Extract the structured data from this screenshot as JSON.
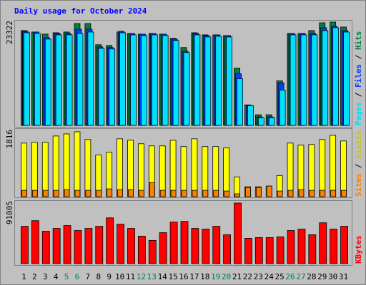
{
  "chart_data": {
    "type": "bar",
    "title": "Daily usage for October 2024",
    "categories": [
      "1",
      "2",
      "3",
      "4",
      "5",
      "6",
      "7",
      "8",
      "9",
      "10",
      "11",
      "12",
      "13",
      "14",
      "15",
      "16",
      "17",
      "18",
      "19",
      "20",
      "21",
      "22",
      "23",
      "24",
      "25",
      "26",
      "27",
      "28",
      "29",
      "30",
      "31"
    ],
    "category_colors": [
      "#000000",
      "#000000",
      "#000000",
      "#000000",
      "#008040",
      "#008040",
      "#000000",
      "#000000",
      "#000000",
      "#000000",
      "#000000",
      "#008040",
      "#008040",
      "#000000",
      "#000000",
      "#000000",
      "#000000",
      "#000000",
      "#008040",
      "#008040",
      "#000000",
      "#000000",
      "#000000",
      "#000000",
      "#000000",
      "#008040",
      "#008040",
      "#000000",
      "#000000",
      "#000000",
      "#000000"
    ],
    "legend_separator": " / ",
    "panels": [
      {
        "ylim": [
          0,
          23322
        ],
        "yticks": [
          23322
        ],
        "series": [
          {
            "name": "Hits",
            "color": "#008040",
            "values": [
              21400,
              21080,
              20600,
              20920,
              21080,
              23000,
              23000,
              18210,
              18050,
              21080,
              20760,
              20600,
              20760,
              20600,
              19640,
              17570,
              20920,
              20440,
              20440,
              20280,
              12940,
              4630,
              2400,
              2400,
              10060,
              20760,
              20760,
              21400,
              23160,
              23322,
              22200
            ]
          },
          {
            "name": "Files",
            "color": "#0040ff",
            "values": [
              21240,
              21080,
              19800,
              20760,
              20760,
              21720,
              21720,
              17730,
              17570,
              21240,
              20760,
              20600,
              20760,
              20600,
              19480,
              16770,
              20760,
              20280,
              20440,
              20280,
              11660,
              4550,
              1920,
              1920,
              9580,
              20760,
              20760,
              20760,
              22040,
              22360,
              21400
            ]
          },
          {
            "name": "Pages",
            "color": "#00e0ff",
            "values": [
              20920,
              20760,
              19480,
              20440,
              20440,
              20760,
              21080,
              17410,
              17250,
              20920,
              20440,
              20280,
              20440,
              20280,
              19160,
              16450,
              20440,
              19960,
              20120,
              19960,
              10540,
              4470,
              1760,
              1760,
              7990,
              20440,
              20440,
              20440,
              21400,
              22040,
              21080
            ]
          }
        ]
      },
      {
        "ylim": [
          0,
          1816
        ],
        "yticks": [
          1816
        ],
        "series": [
          {
            "name": "Visits",
            "color": "#ffff00",
            "values": [
              1484,
              1504,
              1504,
              1680,
              1738,
              1797,
              1582,
              1152,
              1230,
              1602,
              1562,
              1465,
              1406,
              1406,
              1562,
              1387,
              1602,
              1387,
              1387,
              1348,
              547,
              273,
              273,
              293,
              586,
              1484,
              1426,
              1445,
              1582,
              1699,
              1543
            ]
          },
          {
            "name": "Sites",
            "color": "#ff8000",
            "values": [
              176,
              176,
              176,
              176,
              195,
              176,
              176,
              176,
              215,
              195,
              195,
              176,
              390,
              176,
              176,
              176,
              176,
              176,
              176,
              156,
              78,
              254,
              254,
              293,
              156,
              176,
              195,
              176,
              176,
              176,
              176
            ]
          }
        ]
      },
      {
        "ylim": [
          0,
          91005
        ],
        "yticks": [
          91005
        ],
        "series": [
          {
            "name": "KBytes",
            "color": "#ff0000",
            "values": [
              55440,
              63810,
              48120,
              52300,
              56480,
              49160,
              52300,
              55440,
              67990,
              58580,
              52300,
              40790,
              34520,
              46020,
              61710,
              62760,
              52300,
              51250,
              55440,
              42890,
              89960,
              37660,
              38700,
              38700,
              39750,
              49160,
              51250,
              42890,
              60670,
              51250,
              55440
            ]
          }
        ]
      }
    ]
  }
}
